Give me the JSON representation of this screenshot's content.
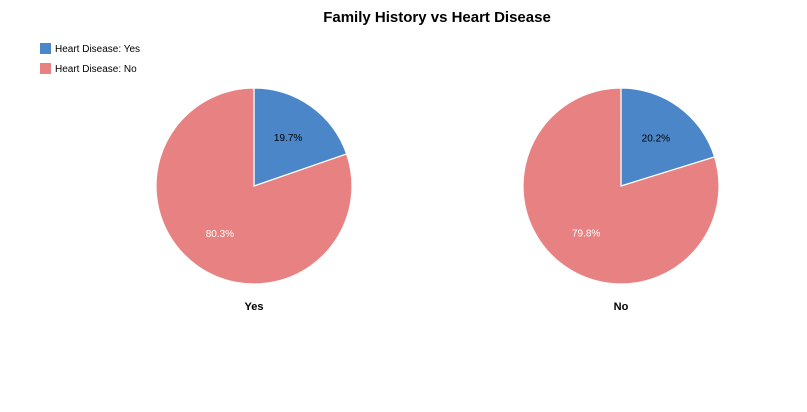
{
  "chart_data": {
    "type": "pie",
    "title": "Family History vs Heart Disease",
    "legend": {
      "placement": "top-left",
      "entries": [
        {
          "label": "Heart Disease: Yes",
          "color": "#4a86c8"
        },
        {
          "label": "Heart Disease: No",
          "color": "#e88282"
        }
      ]
    },
    "pies": [
      {
        "caption": "Yes",
        "slices": [
          {
            "series": "Heart Disease: Yes",
            "value": 19.7,
            "label": "19.7%"
          },
          {
            "series": "Heart Disease: No",
            "value": 80.3,
            "label": "80.3%"
          }
        ]
      },
      {
        "caption": "No",
        "slices": [
          {
            "series": "Heart Disease: Yes",
            "value": 20.2,
            "label": "20.2%"
          },
          {
            "series": "Heart Disease: No",
            "value": 79.8,
            "label": "79.8%"
          }
        ]
      }
    ]
  }
}
